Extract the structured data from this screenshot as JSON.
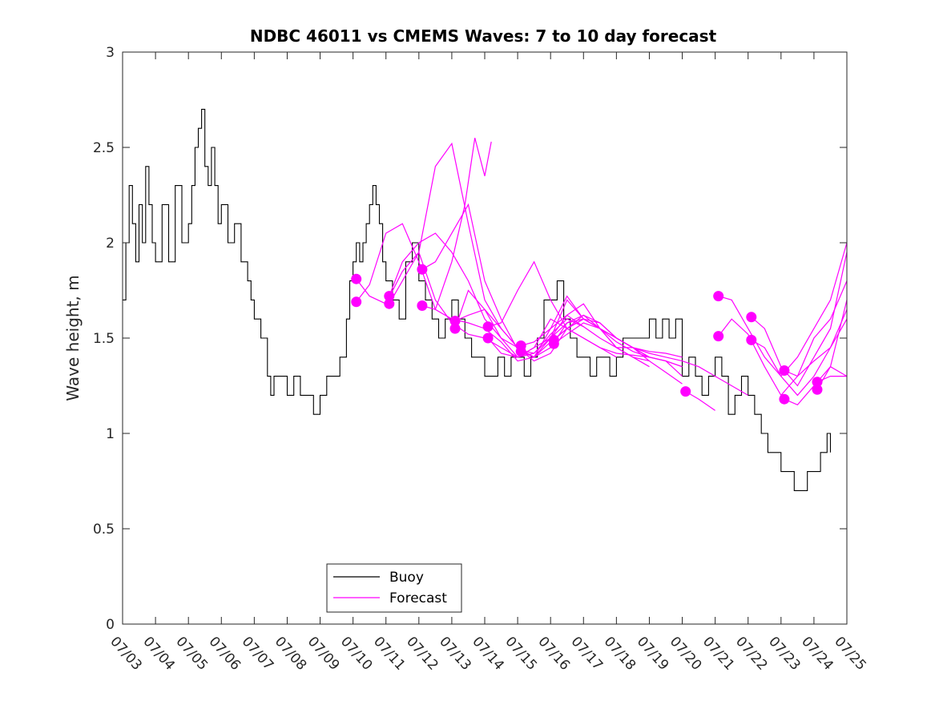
{
  "chart_data": {
    "type": "line",
    "title": "NDBC 46011 vs CMEMS Waves: 7 to 10 day forecast",
    "xlabel": "",
    "ylabel": "Wave height, m",
    "xlim": [
      0,
      22
    ],
    "ylim": [
      0,
      3
    ],
    "x_ticks": [
      0,
      1,
      2,
      3,
      4,
      5,
      6,
      7,
      8,
      9,
      10,
      11,
      12,
      13,
      14,
      15,
      16,
      17,
      18,
      19,
      20,
      21,
      22
    ],
    "x_tick_labels": [
      "07/03",
      "07/04",
      "07/05",
      "07/06",
      "07/07",
      "07/08",
      "07/09",
      "07/10",
      "07/11",
      "07/12",
      "07/13",
      "07/14",
      "07/15",
      "07/16",
      "07/17",
      "07/18",
      "07/19",
      "07/20",
      "07/21",
      "07/22",
      "07/23",
      "07/24",
      "07/25"
    ],
    "y_ticks": [
      0,
      0.5,
      1,
      1.5,
      2,
      2.5,
      3
    ],
    "y_tick_labels": [
      "0",
      "0.5",
      "1",
      "1.5",
      "2",
      "2.5",
      "3"
    ],
    "grid": false,
    "legend_position": "bottom-left",
    "colors": {
      "buoy": "#000000",
      "forecast": "#ff00ff"
    },
    "buoy": {
      "name": "Buoy",
      "x": [
        0,
        0.1,
        0.2,
        0.3,
        0.4,
        0.5,
        0.6,
        0.7,
        0.8,
        0.9,
        1.0,
        1.2,
        1.4,
        1.6,
        1.8,
        2.0,
        2.1,
        2.2,
        2.3,
        2.4,
        2.5,
        2.6,
        2.7,
        2.8,
        2.9,
        3.0,
        3.2,
        3.4,
        3.6,
        3.8,
        3.9,
        4.0,
        4.2,
        4.4,
        4.5,
        4.6,
        4.8,
        5.0,
        5.2,
        5.4,
        5.6,
        5.8,
        6.0,
        6.2,
        6.4,
        6.6,
        6.8,
        6.9,
        7.0,
        7.1,
        7.2,
        7.3,
        7.4,
        7.5,
        7.6,
        7.7,
        7.8,
        7.9,
        8.0,
        8.2,
        8.4,
        8.6,
        8.8,
        9.0,
        9.2,
        9.4,
        9.6,
        9.8,
        10.0,
        10.2,
        10.4,
        10.6,
        10.8,
        11.0,
        11.2,
        11.4,
        11.6,
        11.8,
        12.0,
        12.2,
        12.4,
        12.6,
        12.8,
        13.0,
        13.2,
        13.4,
        13.6,
        13.8,
        14.0,
        14.2,
        14.4,
        14.6,
        14.8,
        15.0,
        15.2,
        15.4,
        15.6,
        15.8,
        16.0,
        16.2,
        16.4,
        16.6,
        16.8,
        17.0,
        17.2,
        17.4,
        17.6,
        17.8,
        18.0,
        18.2,
        18.4,
        18.6,
        18.8,
        19.0,
        19.2,
        19.4,
        19.6,
        19.8,
        20.0,
        20.2,
        20.4,
        20.6,
        20.8,
        21.0,
        21.2,
        21.4,
        21.5
      ],
      "values": [
        1.7,
        2.0,
        2.3,
        2.1,
        1.9,
        2.2,
        2.0,
        2.4,
        2.2,
        2.0,
        1.9,
        2.2,
        1.9,
        2.3,
        2.0,
        2.1,
        2.3,
        2.5,
        2.6,
        2.7,
        2.4,
        2.3,
        2.5,
        2.3,
        2.1,
        2.2,
        2.0,
        2.1,
        1.9,
        1.8,
        1.7,
        1.6,
        1.5,
        1.3,
        1.2,
        1.3,
        1.3,
        1.2,
        1.3,
        1.2,
        1.2,
        1.1,
        1.2,
        1.3,
        1.3,
        1.4,
        1.6,
        1.8,
        1.9,
        2.0,
        1.9,
        2.0,
        2.1,
        2.2,
        2.3,
        2.2,
        2.1,
        1.9,
        1.8,
        1.7,
        1.6,
        1.9,
        2.0,
        1.8,
        1.7,
        1.6,
        1.5,
        1.6,
        1.7,
        1.6,
        1.5,
        1.4,
        1.4,
        1.3,
        1.3,
        1.4,
        1.3,
        1.4,
        1.4,
        1.3,
        1.4,
        1.5,
        1.7,
        1.7,
        1.8,
        1.6,
        1.5,
        1.4,
        1.4,
        1.3,
        1.4,
        1.4,
        1.3,
        1.4,
        1.5,
        1.5,
        1.5,
        1.5,
        1.6,
        1.5,
        1.6,
        1.5,
        1.6,
        1.3,
        1.4,
        1.3,
        1.2,
        1.3,
        1.4,
        1.3,
        1.1,
        1.2,
        1.3,
        1.2,
        1.1,
        1.0,
        0.9,
        0.9,
        0.8,
        0.8,
        0.7,
        0.7,
        0.8,
        0.8,
        0.9,
        1.0,
        0.9
      ]
    },
    "forecast": {
      "name": "Forecast",
      "series": [
        {
          "x": [
            7.1,
            7.5,
            8.0,
            8.5,
            9.0,
            9.5,
            10.0,
            10.5,
            11.0,
            11.5,
            12.0,
            12.5,
            13.0,
            13.5,
            14.0,
            14.5,
            15.0,
            15.5,
            16.0,
            16.5,
            17.0
          ],
          "values": [
            1.81,
            1.72,
            1.68,
            1.85,
            1.95,
            1.7,
            1.58,
            1.52,
            1.5,
            1.45,
            1.4,
            1.42,
            1.52,
            1.6,
            1.56,
            1.5,
            1.45,
            1.45,
            1.43,
            1.42,
            1.4
          ]
        },
        {
          "x": [
            7.1,
            7.5,
            8.0,
            8.5,
            9.0,
            9.5,
            10.0,
            10.5,
            11.0,
            11.5,
            12.0,
            12.5,
            13.0,
            13.5,
            14.0,
            14.5,
            15.0,
            15.5,
            16.0,
            16.5,
            17.0
          ],
          "values": [
            1.69,
            1.78,
            2.05,
            2.1,
            1.9,
            1.65,
            1.6,
            1.58,
            1.55,
            1.48,
            1.38,
            1.4,
            1.48,
            1.55,
            1.6,
            1.55,
            1.5,
            1.45,
            1.4,
            1.38,
            1.35
          ]
        },
        {
          "x": [
            8.1,
            8.5,
            9.0,
            9.5,
            10.0,
            10.5,
            11.0,
            11.5,
            12.0,
            12.5,
            13.0,
            13.5,
            14.0,
            14.5,
            15.0,
            15.5,
            16.0,
            16.5,
            17.0
          ],
          "values": [
            1.72,
            1.9,
            2.0,
            2.05,
            1.95,
            1.8,
            1.6,
            1.5,
            1.45,
            1.4,
            1.5,
            1.58,
            1.6,
            1.55,
            1.5,
            1.45,
            1.4,
            1.38,
            1.3
          ]
        },
        {
          "x": [
            8.1,
            8.5,
            9.0,
            9.5,
            10.0,
            10.5,
            11.0,
            11.5,
            12.0,
            12.5,
            13.0,
            13.5,
            14.0,
            14.5,
            15.0,
            15.5,
            16.0,
            16.5,
            17.0
          ],
          "values": [
            1.68,
            1.8,
            1.95,
            2.4,
            2.52,
            2.1,
            1.7,
            1.55,
            1.45,
            1.38,
            1.42,
            1.55,
            1.62,
            1.58,
            1.5,
            1.45,
            1.38,
            1.32,
            1.26
          ]
        },
        {
          "x": [
            9.1,
            9.5,
            10.0,
            10.5,
            11.0,
            11.5,
            12.0,
            12.5,
            13.0,
            13.5,
            14.0,
            14.5,
            15.0,
            15.5
          ],
          "values": [
            1.86,
            1.9,
            2.05,
            2.2,
            1.8,
            1.6,
            1.44,
            1.42,
            1.5,
            1.7,
            1.6,
            1.55,
            1.5,
            1.45
          ]
        },
        {
          "x": [
            9.1,
            9.5,
            10.0,
            10.4,
            10.7,
            11.0,
            11.2
          ],
          "values": [
            1.67,
            1.65,
            1.9,
            2.2,
            2.55,
            2.35,
            2.53
          ]
        },
        {
          "x": [
            10.1,
            10.5,
            11.0,
            11.5,
            12.0,
            12.5,
            13.0,
            13.5,
            14.0
          ],
          "values": [
            1.59,
            1.62,
            1.65,
            1.55,
            1.45,
            1.4,
            1.55,
            1.72,
            1.6
          ]
        },
        {
          "x": [
            10.1,
            10.5,
            11.0,
            11.5,
            12.0,
            12.5,
            13.0,
            13.5,
            14.0
          ],
          "values": [
            1.55,
            1.75,
            1.65,
            1.5,
            1.4,
            1.45,
            1.5,
            1.62,
            1.56
          ]
        },
        {
          "x": [
            11.1,
            11.5,
            12.0,
            12.5,
            13.0,
            13.5,
            14.0,
            14.5,
            15.0,
            15.5,
            16.0
          ],
          "values": [
            1.56,
            1.58,
            1.75,
            1.9,
            1.7,
            1.55,
            1.5,
            1.45,
            1.42,
            1.41,
            1.4
          ]
        },
        {
          "x": [
            11.1,
            11.5,
            12.0,
            12.5,
            13.0,
            13.5,
            14.0,
            14.5,
            15.0
          ],
          "values": [
            1.5,
            1.42,
            1.4,
            1.45,
            1.6,
            1.55,
            1.5,
            1.45,
            1.4
          ]
        },
        {
          "x": [
            12.1,
            12.5,
            13.0,
            13.5,
            14.0,
            14.5,
            15.0,
            15.5,
            16.0
          ],
          "values": [
            1.46,
            1.48,
            1.55,
            1.62,
            1.68,
            1.55,
            1.45,
            1.4,
            1.38
          ]
        },
        {
          "x": [
            12.1,
            12.5,
            13.0,
            13.5,
            14.0,
            14.5,
            15.0,
            15.5,
            16.0
          ],
          "values": [
            1.43,
            1.4,
            1.45,
            1.58,
            1.62,
            1.55,
            1.45,
            1.4,
            1.35
          ]
        },
        {
          "x": [
            13.1,
            13.5,
            14.0,
            14.5,
            15.0,
            15.5,
            16.0,
            16.5,
            17.0,
            17.5,
            18.0,
            18.5,
            19.0
          ],
          "values": [
            1.49,
            1.55,
            1.6,
            1.58,
            1.5,
            1.45,
            1.42,
            1.4,
            1.38,
            1.35,
            1.3,
            1.25,
            1.2
          ]
        },
        {
          "x": [
            13.1,
            13.5,
            14.0,
            14.5,
            15.0,
            15.5,
            16.0,
            16.5,
            17.0
          ],
          "values": [
            1.47,
            1.52,
            1.58,
            1.55,
            1.48,
            1.43,
            1.4,
            1.38,
            1.35
          ]
        },
        {
          "x": [
            17.1,
            17.5,
            18.0
          ],
          "values": [
            1.22,
            1.18,
            1.12
          ]
        },
        {
          "x": [
            18.1,
            18.5,
            19.0,
            19.5,
            20.0,
            20.5,
            21.0,
            21.5,
            22.0
          ],
          "values": [
            1.72,
            1.7,
            1.55,
            1.4,
            1.3,
            1.4,
            1.55,
            1.7,
            2.0
          ]
        },
        {
          "x": [
            18.1,
            18.5,
            19.0,
            19.5,
            20.0,
            20.5,
            21.0,
            21.5,
            22.0
          ],
          "values": [
            1.51,
            1.6,
            1.52,
            1.35,
            1.2,
            1.3,
            1.5,
            1.6,
            1.8
          ]
        },
        {
          "x": [
            19.1,
            19.5,
            20.0,
            20.5,
            21.0,
            21.5,
            22.0
          ],
          "values": [
            1.61,
            1.55,
            1.35,
            1.25,
            1.4,
            1.55,
            1.95
          ]
        },
        {
          "x": [
            19.1,
            19.5,
            20.0,
            20.5,
            21.0,
            21.5,
            22.0
          ],
          "values": [
            1.49,
            1.45,
            1.3,
            1.2,
            1.3,
            1.45,
            1.65
          ]
        },
        {
          "x": [
            20.1,
            20.5,
            21.0,
            21.5,
            22.0
          ],
          "values": [
            1.33,
            1.3,
            1.38,
            1.45,
            1.6
          ]
        },
        {
          "x": [
            20.1,
            20.5,
            21.0,
            21.5,
            22.0
          ],
          "values": [
            1.18,
            1.15,
            1.25,
            1.35,
            1.3
          ]
        },
        {
          "x": [
            21.1,
            21.5,
            22.0
          ],
          "values": [
            1.27,
            1.3,
            1.3
          ]
        },
        {
          "x": [
            21.1,
            21.5,
            22.0
          ],
          "values": [
            1.23,
            1.35,
            1.7
          ]
        }
      ],
      "markers": [
        {
          "x": 7.1,
          "y": 1.81
        },
        {
          "x": 7.1,
          "y": 1.69
        },
        {
          "x": 8.1,
          "y": 1.72
        },
        {
          "x": 8.1,
          "y": 1.68
        },
        {
          "x": 9.1,
          "y": 1.86
        },
        {
          "x": 9.1,
          "y": 1.67
        },
        {
          "x": 10.1,
          "y": 1.59
        },
        {
          "x": 10.1,
          "y": 1.55
        },
        {
          "x": 11.1,
          "y": 1.56
        },
        {
          "x": 11.1,
          "y": 1.5
        },
        {
          "x": 12.1,
          "y": 1.46
        },
        {
          "x": 12.1,
          "y": 1.43
        },
        {
          "x": 13.1,
          "y": 1.49
        },
        {
          "x": 13.1,
          "y": 1.47
        },
        {
          "x": 17.1,
          "y": 1.22
        },
        {
          "x": 18.1,
          "y": 1.72
        },
        {
          "x": 18.1,
          "y": 1.51
        },
        {
          "x": 19.1,
          "y": 1.61
        },
        {
          "x": 19.1,
          "y": 1.49
        },
        {
          "x": 20.1,
          "y": 1.33
        },
        {
          "x": 20.1,
          "y": 1.18
        },
        {
          "x": 21.1,
          "y": 1.27
        },
        {
          "x": 21.1,
          "y": 1.23
        }
      ]
    },
    "legend": [
      {
        "label": "Buoy",
        "color": "#000000"
      },
      {
        "label": "Forecast",
        "color": "#ff00ff"
      }
    ]
  }
}
